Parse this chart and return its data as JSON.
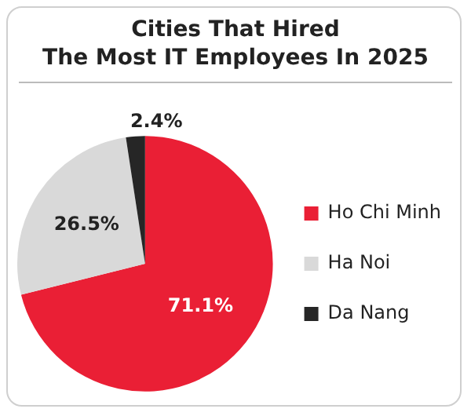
{
  "chart_data": {
    "type": "pie",
    "title": "Cities That Hired\nThe Most IT Employees In 2025",
    "categories": [
      "Ho Chi Minh",
      "Ha Noi",
      "Da Nang"
    ],
    "values": [
      71.1,
      26.5,
      2.4
    ],
    "colors": [
      "#ea1f35",
      "#d9d9d9",
      "#262626"
    ],
    "value_labels": [
      "71.1%",
      "26.5%",
      "2.4%"
    ],
    "legend": "right"
  }
}
